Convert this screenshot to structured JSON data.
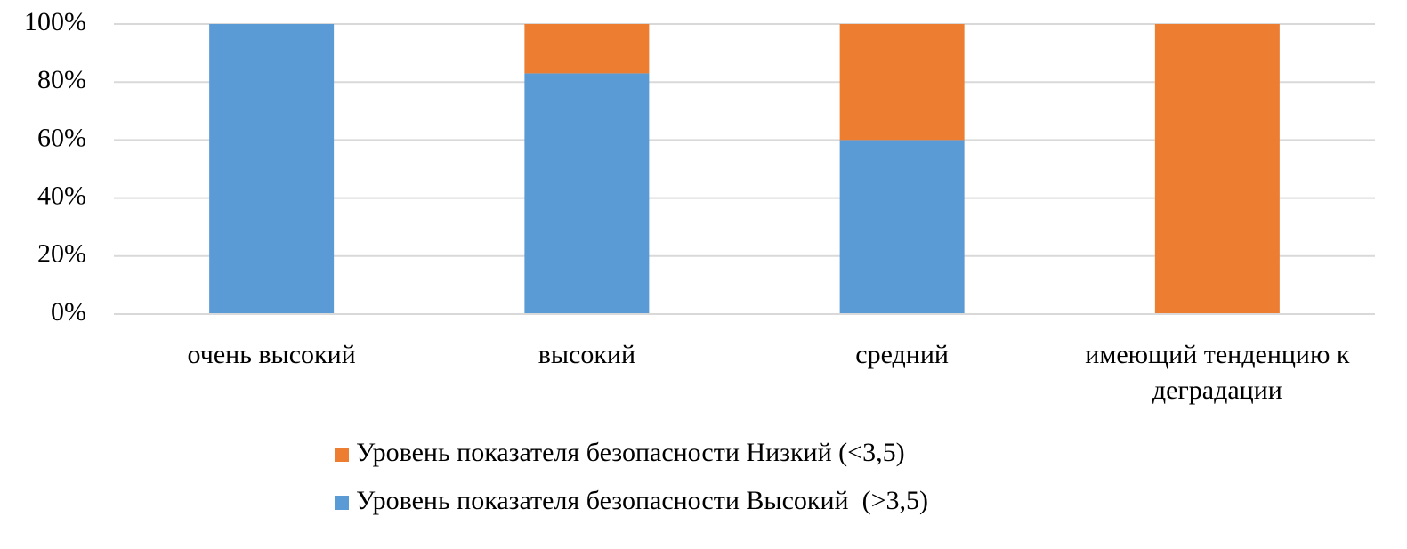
{
  "chart_data": {
    "type": "stacked_bar",
    "categories": [
      "очень высокий",
      "высокий",
      "средний",
      "имеющий тенденцию к деградации"
    ],
    "series": [
      {
        "name": "Уровень показателя безопасности Высокий  (>3,5)",
        "color": "#5b9bd5",
        "values": [
          100,
          83,
          60,
          0
        ]
      },
      {
        "name": "Уровень показателя безопасности Низкий (<3,5)",
        "color": "#ed7d31",
        "values": [
          0,
          17,
          40,
          100
        ]
      }
    ],
    "ylim": [
      0,
      100
    ],
    "yticks": [
      {
        "value": 0,
        "label": "0%"
      },
      {
        "value": 20,
        "label": "20%"
      },
      {
        "value": 40,
        "label": "40%"
      },
      {
        "value": 60,
        "label": "60%"
      },
      {
        "value": 80,
        "label": "80%"
      },
      {
        "value": 100,
        "label": "100%"
      }
    ],
    "grid": true,
    "legend": "bottom"
  }
}
